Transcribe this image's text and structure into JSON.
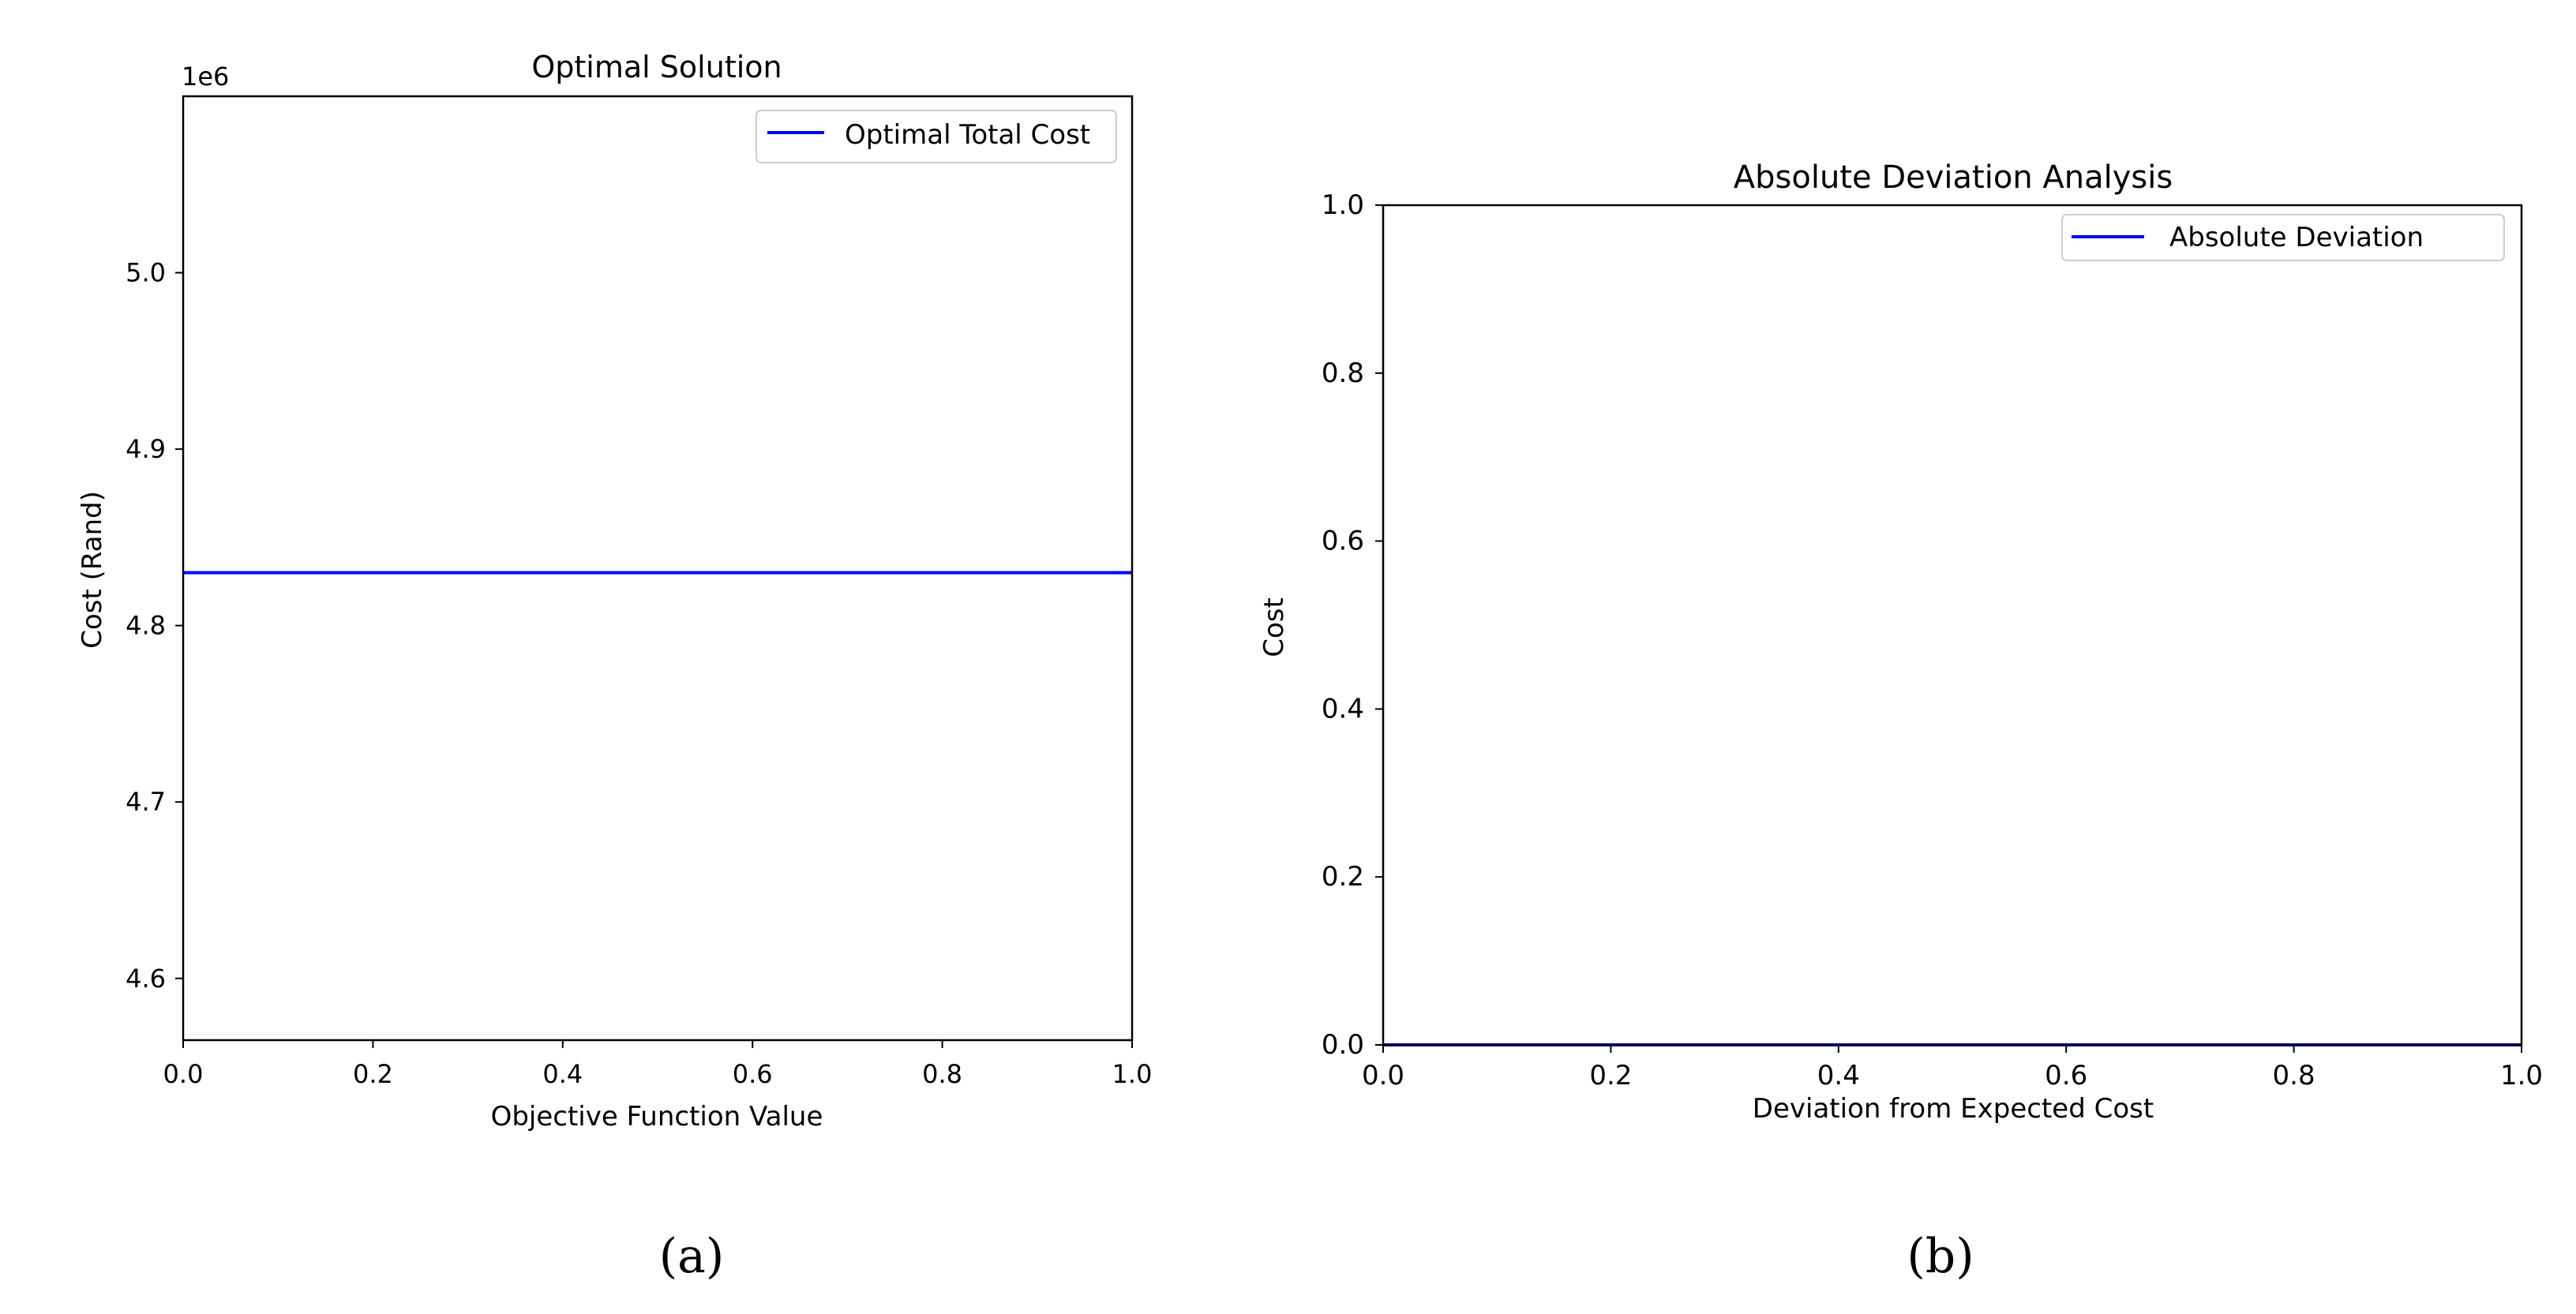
{
  "captions": [
    "(a)",
    "(b)"
  ],
  "chart_data": [
    {
      "type": "line",
      "title": "Optimal Solution",
      "xlabel": "Objective Function Value",
      "ylabel": "Cost (Rand)",
      "y_offset_label": "1e6",
      "xlim": [
        0.0,
        1.0
      ],
      "ylim": [
        4.565,
        5.1
      ],
      "xticks": [
        "0.0",
        "0.2",
        "0.4",
        "0.6",
        "0.8",
        "1.0"
      ],
      "yticks": [
        "4.6",
        "4.7",
        "4.8",
        "4.9",
        "5.0"
      ],
      "ytick_values": [
        4.6,
        4.7,
        4.8,
        4.9,
        5.0
      ],
      "series": [
        {
          "name": "Optimal Total Cost",
          "x": [
            0.0,
            1.0
          ],
          "y": [
            4.83,
            4.83
          ],
          "color": "#0000ff"
        }
      ],
      "legend": "top-right",
      "grid": false
    },
    {
      "type": "line",
      "title": "Absolute Deviation Analysis",
      "xlabel": "Deviation from Expected Cost",
      "ylabel": "Cost",
      "xlim": [
        0.0,
        1.0
      ],
      "ylim": [
        0.0,
        1.0
      ],
      "xticks": [
        "0.0",
        "0.2",
        "0.4",
        "0.6",
        "0.8",
        "1.0"
      ],
      "yticks": [
        "0.0",
        "0.2",
        "0.4",
        "0.6",
        "0.8",
        "1.0"
      ],
      "ytick_values": [
        0.0,
        0.2,
        0.4,
        0.6,
        0.8,
        1.0
      ],
      "series": [
        {
          "name": "Absolute Deviation",
          "x": [
            0.0,
            1.0
          ],
          "y": [
            0.0,
            0.0
          ],
          "color": "#0000ff"
        }
      ],
      "legend": "top-right",
      "grid": false
    }
  ]
}
